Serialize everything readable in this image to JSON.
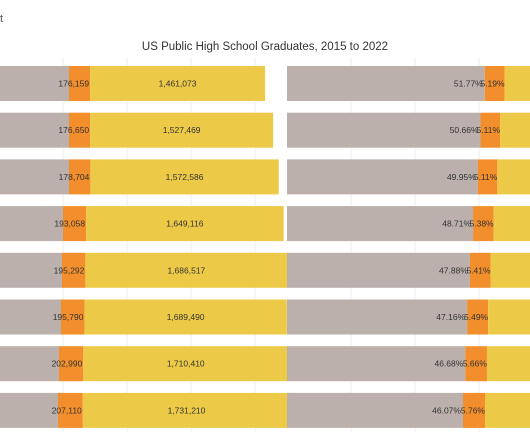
{
  "header": {
    "corner_mark": "t",
    "title": "US Public High School Graduates, 2015 to 2022"
  },
  "chart_data": [
    {
      "type": "bar",
      "orientation": "horizontal",
      "stacked": true,
      "series": [
        {
          "name": "",
          "color": "#bbb0ab",
          "values": []
        },
        {
          "name": "",
          "color": "#f28e2b",
          "values": [
            176159,
            176650,
            178704,
            193058,
            195292,
            195790,
            202990,
            207110
          ]
        },
        {
          "name": "",
          "color": "#edc948",
          "values": [
            1461073,
            1527469,
            1572586,
            1649116,
            1686517,
            1689490,
            1710410,
            1731210
          ]
        }
      ],
      "labels_orange": [
        "176,159",
        "176,650",
        "178,704",
        "193,058",
        "195,292",
        "195,790",
        "202,990",
        "207,110"
      ],
      "labels_yellow": [
        "1,461,073",
        "1,527,469",
        "1,572,586",
        "1,649,116",
        "1,686,517",
        "1,689,490",
        "1,710,410",
        "1,731,210"
      ],
      "note": "grey segment extends beyond the visible left edge; its value is not printed"
    },
    {
      "type": "bar",
      "orientation": "horizontal",
      "stacked": true,
      "percent": true,
      "series": [
        {
          "name": "",
          "color": "#bbb0ab",
          "values": [
            51.77,
            50.66,
            49.95,
            48.71,
            47.88,
            47.16,
            46.68,
            46.07
          ]
        },
        {
          "name": "",
          "color": "#f28e2b",
          "values": [
            5.19,
            5.11,
            5.11,
            5.38,
            5.41,
            5.49,
            5.66,
            5.76
          ]
        }
      ],
      "labels_grey": [
        "51.77%",
        "50.66%",
        "49.95%",
        "48.71%",
        "47.88%",
        "47.16%",
        "46.68%",
        "46.07%"
      ],
      "labels_orange": [
        "5.19%",
        "5.11%",
        "5.11%",
        "5.38%",
        "5.41%",
        "5.49%",
        "5.66%",
        "5.76%"
      ]
    }
  ]
}
